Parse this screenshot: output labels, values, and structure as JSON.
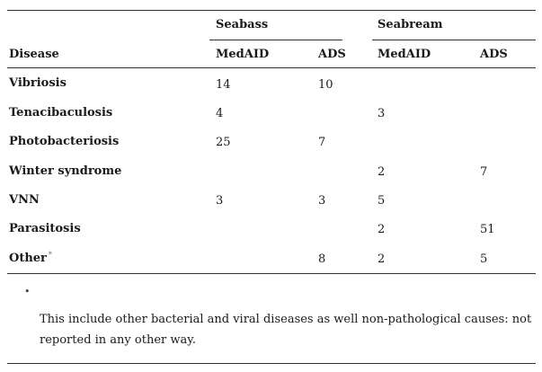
{
  "table": {
    "header": {
      "group_seabass": "Seabass",
      "group_seabream": "Seabream",
      "disease": "Disease",
      "seabass_medaid": "MedAID",
      "seabass_ads": "ADS",
      "seabream_medaid": "MedAID",
      "seabream_ads": "ADS"
    },
    "rows": [
      {
        "disease": "Vibriosis",
        "seabass_medaid": "14",
        "seabass_ads": "10",
        "seabream_medaid": "",
        "seabream_ads": ""
      },
      {
        "disease": "Tenacibaculosis",
        "seabass_medaid": "4",
        "seabass_ads": "",
        "seabream_medaid": "3",
        "seabream_ads": ""
      },
      {
        "disease": "Photobacteriosis",
        "seabass_medaid": "25",
        "seabass_ads": "7",
        "seabream_medaid": "",
        "seabream_ads": ""
      },
      {
        "disease": "Winter syndrome",
        "seabass_medaid": "",
        "seabass_ads": "",
        "seabream_medaid": "2",
        "seabream_ads": "7"
      },
      {
        "disease": "VNN",
        "seabass_medaid": "3",
        "seabass_ads": "3",
        "seabream_medaid": "5",
        "seabream_ads": ""
      },
      {
        "disease": "Parasitosis",
        "seabass_medaid": "",
        "seabass_ads": "",
        "seabream_medaid": "2",
        "seabream_ads": "51"
      },
      {
        "disease": "Other",
        "note_marker": "*",
        "seabass_medaid": "",
        "seabass_ads": "8",
        "seabream_medaid": "2",
        "seabream_ads": "5"
      }
    ]
  },
  "footnote": {
    "bullet": "•",
    "text": "This include other bacterial and viral diseases as well non-pathological causes: not reported in any other way."
  }
}
